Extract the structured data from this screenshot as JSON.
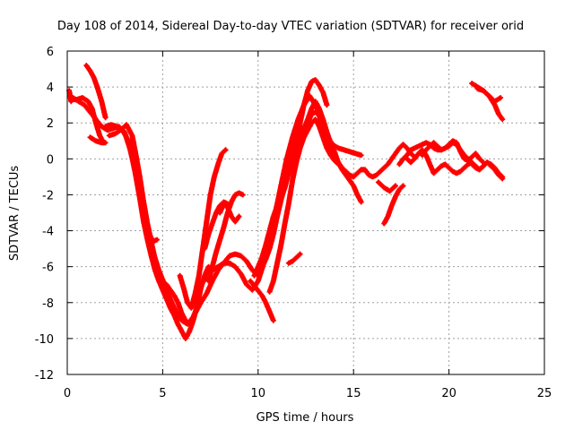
{
  "chart_data": {
    "type": "scatter",
    "title": "Day 108 of 2014, Sidereal Day-to-day VTEC variation (SDTVAR) for receiver orid",
    "xlabel": "GPS time / hours",
    "ylabel": "SDTVAR / TECUs",
    "xlim": [
      0,
      25
    ],
    "ylim": [
      -12,
      6
    ],
    "xticks": [
      0,
      5,
      10,
      15,
      20,
      25
    ],
    "yticks": [
      -12,
      -10,
      -8,
      -6,
      -4,
      -2,
      0,
      2,
      4,
      6
    ],
    "grid": true,
    "legend": "none",
    "marker_color": "#ff0000",
    "series": [
      {
        "name": "trace-1",
        "x": [
          0.1,
          0.2
        ],
        "y": [
          3.8,
          3.2
        ]
      },
      {
        "name": "trace-2",
        "x": [
          0.2,
          0.5,
          0.8,
          1.1,
          1.3,
          1.5,
          1.7,
          1.9
        ],
        "y": [
          3.3,
          3.3,
          3.4,
          3.2,
          2.8,
          2.0,
          1.3,
          0.9
        ]
      },
      {
        "name": "trace-3",
        "x": [
          0.3,
          0.6,
          0.9,
          1.2,
          1.5,
          1.8,
          2.1,
          2.4,
          2.7,
          3.0,
          3.3,
          3.6,
          3.9,
          4.2,
          4.5,
          4.8,
          5.1,
          5.4,
          5.7,
          6.0,
          6.3,
          6.6,
          6.9
        ],
        "y": [
          3.4,
          3.2,
          3.0,
          2.6,
          2.2,
          1.8,
          1.6,
          1.7,
          1.8,
          1.5,
          0.5,
          -0.9,
          -2.5,
          -4.0,
          -5.2,
          -6.2,
          -7.0,
          -7.8,
          -8.5,
          -9.0,
          -9.2,
          -8.8,
          -8.0
        ]
      },
      {
        "name": "trace-4",
        "x": [
          1.0,
          1.2,
          1.4,
          1.6,
          1.8,
          2.0
        ],
        "y": [
          5.2,
          4.9,
          4.5,
          3.9,
          3.2,
          2.3
        ]
      },
      {
        "name": "trace-5",
        "x": [
          1.2,
          1.5,
          1.8,
          2.0
        ],
        "y": [
          1.2,
          1.0,
          0.9,
          0.9
        ]
      },
      {
        "name": "trace-6",
        "x": [
          2.0,
          2.3,
          2.6,
          2.9,
          3.2,
          3.4,
          3.6,
          3.8,
          4.0,
          4.2,
          4.4,
          4.6,
          4.8,
          5.0,
          5.2,
          5.4,
          5.6,
          5.8,
          6.0,
          6.2,
          6.4,
          6.6,
          6.8,
          7.0,
          7.2,
          7.4
        ],
        "y": [
          1.8,
          1.9,
          1.8,
          1.6,
          1.0,
          0.1,
          -1.0,
          -2.2,
          -3.5,
          -4.5,
          -5.4,
          -6.2,
          -6.8,
          -7.3,
          -7.8,
          -8.3,
          -8.7,
          -9.2,
          -9.6,
          -10.0,
          -9.6,
          -9.0,
          -8.2,
          -7.2,
          -6.5,
          -6.0
        ]
      },
      {
        "name": "trace-7",
        "x": [
          2.2,
          2.5,
          2.8,
          3.1,
          3.4,
          3.6,
          3.8,
          4.0,
          4.2,
          4.4,
          4.6,
          4.8,
          5.0,
          5.2,
          5.4,
          5.6,
          5.8,
          6.0,
          6.2,
          6.4,
          6.6,
          6.8,
          7.0
        ],
        "y": [
          1.3,
          1.4,
          1.6,
          1.9,
          1.3,
          0.2,
          -1.0,
          -2.4,
          -3.6,
          -4.6,
          -5.6,
          -6.3,
          -6.8,
          -7.0,
          -7.3,
          -7.6,
          -8.0,
          -8.6,
          -9.0,
          -9.2,
          -8.8,
          -8.4,
          -8.0
        ]
      },
      {
        "name": "trace-8",
        "x": [
          3.5,
          3.7,
          3.9,
          4.1,
          4.3,
          4.5,
          4.7
        ],
        "y": [
          0.5,
          -1.0,
          -2.3,
          -3.4,
          -4.2,
          -4.6,
          -4.5
        ]
      },
      {
        "name": "trace-9",
        "x": [
          5.9,
          6.1,
          6.3,
          6.5,
          6.7,
          6.9,
          7.1,
          7.3,
          7.5,
          7.7,
          7.9,
          8.1,
          8.3
        ],
        "y": [
          -6.5,
          -7.2,
          -8.0,
          -8.3,
          -7.5,
          -6.5,
          -5.0,
          -3.5,
          -2.0,
          -1.0,
          -0.3,
          0.3,
          0.5
        ]
      },
      {
        "name": "trace-10",
        "x": [
          6.7,
          7.0,
          7.3,
          7.6,
          7.9,
          8.2,
          8.5,
          8.8,
          9.1,
          9.4,
          9.7,
          10.0,
          10.3,
          10.6,
          10.9,
          11.2,
          11.5,
          11.8,
          12.1,
          12.4,
          12.7,
          13.0,
          13.3,
          13.6,
          13.9,
          14.2,
          14.5,
          14.8,
          15.1,
          15.4
        ],
        "y": [
          -7.8,
          -7.0,
          -6.6,
          -6.2,
          -6.0,
          -5.8,
          -5.8,
          -6.0,
          -6.4,
          -7.0,
          -7.3,
          -6.8,
          -5.8,
          -4.6,
          -3.2,
          -1.5,
          0.0,
          1.2,
          2.2,
          3.0,
          3.5,
          3.0,
          2.2,
          1.3,
          0.8,
          0.6,
          0.5,
          0.4,
          0.3,
          0.2
        ]
      },
      {
        "name": "trace-11",
        "x": [
          7.0,
          7.3,
          7.6,
          7.9,
          8.2,
          8.5,
          8.8,
          9.1,
          9.4,
          9.7,
          10.0,
          10.3,
          10.6,
          10.9,
          11.2,
          11.5
        ],
        "y": [
          -8.0,
          -7.5,
          -6.8,
          -6.2,
          -5.8,
          -5.4,
          -5.3,
          -5.4,
          -5.7,
          -6.2,
          -6.5,
          -5.8,
          -4.5,
          -3.0,
          -1.5,
          0.0
        ]
      },
      {
        "name": "trace-12",
        "x": [
          7.4,
          7.6,
          7.8,
          8.0,
          8.2,
          8.4,
          8.6,
          8.8,
          9.0,
          9.2
        ],
        "y": [
          -6.8,
          -6.0,
          -5.2,
          -4.5,
          -3.8,
          -3.0,
          -2.4,
          -2.0,
          -1.9,
          -2.0
        ]
      },
      {
        "name": "trace-13",
        "x": [
          7.2,
          7.4,
          7.6,
          7.8,
          8.0,
          8.2,
          8.4
        ],
        "y": [
          -5.0,
          -4.2,
          -3.6,
          -3.0,
          -2.6,
          -2.4,
          -2.5
        ]
      },
      {
        "name": "trace-14",
        "x": [
          8.0,
          8.2,
          8.4,
          8.6,
          8.8,
          9.0
        ],
        "y": [
          -3.0,
          -2.5,
          -2.7,
          -3.2,
          -3.5,
          -3.2
        ]
      },
      {
        "name": "trace-15",
        "x": [
          9.8,
          10.0,
          10.2,
          10.4,
          10.6,
          10.8,
          11.0,
          11.2,
          11.4,
          11.6,
          11.8,
          12.0,
          12.2,
          12.4,
          12.6,
          12.8,
          13.0,
          13.2,
          13.4,
          13.6
        ],
        "y": [
          -6.5,
          -6.0,
          -5.5,
          -4.8,
          -4.0,
          -3.2,
          -2.6,
          -2.2,
          -1.6,
          -0.8,
          0.2,
          1.0,
          2.0,
          3.0,
          3.8,
          4.3,
          4.4,
          4.1,
          3.7,
          3.0
        ]
      },
      {
        "name": "trace-16",
        "x": [
          10.0,
          10.2,
          10.4,
          10.6,
          10.8,
          11.0,
          11.2,
          11.4,
          11.6,
          11.8,
          12.0,
          12.2,
          12.4,
          12.6,
          12.8,
          13.0,
          13.2,
          13.4,
          13.6,
          13.8,
          14.0,
          14.2,
          14.4,
          14.6,
          14.8,
          15.0,
          15.2,
          15.4
        ],
        "y": [
          -6.3,
          -6.0,
          -5.6,
          -5.0,
          -4.2,
          -3.2,
          -2.3,
          -1.5,
          -0.8,
          0.0,
          0.6,
          1.2,
          1.7,
          2.2,
          2.8,
          3.2,
          2.8,
          2.2,
          1.5,
          0.9,
          0.4,
          -0.2,
          -0.6,
          -0.9,
          -1.2,
          -1.5,
          -2.0,
          -2.4
        ]
      },
      {
        "name": "trace-17",
        "x": [
          10.6,
          10.8,
          11.0,
          11.2,
          11.4,
          11.6,
          11.8,
          12.0,
          12.2,
          12.4,
          12.6,
          12.8,
          13.0,
          13.2,
          13.4,
          13.6,
          13.8,
          14.0,
          14.2
        ],
        "y": [
          -7.4,
          -6.8,
          -5.8,
          -4.8,
          -3.6,
          -2.5,
          -1.2,
          -0.2,
          0.6,
          1.2,
          1.6,
          2.0,
          2.2,
          1.8,
          1.2,
          0.6,
          0.2,
          -0.1,
          -0.3
        ]
      },
      {
        "name": "trace-18",
        "x": [
          9.6,
          9.9,
          10.2,
          10.4,
          10.6,
          10.8
        ],
        "y": [
          -6.8,
          -7.2,
          -7.6,
          -8.0,
          -8.5,
          -9.0
        ]
      },
      {
        "name": "trace-19",
        "x": [
          11.6,
          11.8,
          12.0,
          12.2
        ],
        "y": [
          -5.8,
          -5.7,
          -5.5,
          -5.3
        ]
      },
      {
        "name": "trace-20",
        "x": [
          12.4,
          12.6,
          12.8,
          13.0,
          13.2,
          13.4,
          13.6,
          13.8,
          14.0,
          14.2,
          14.4,
          14.6,
          14.8,
          15.0,
          15.2,
          15.4,
          15.6,
          15.8,
          16.0,
          16.2,
          16.4,
          16.6,
          16.8,
          17.0,
          17.2,
          17.4,
          17.6,
          17.8,
          18.0,
          18.2
        ],
        "y": [
          1.5,
          2.0,
          2.5,
          2.6,
          2.4,
          1.8,
          1.2,
          0.6,
          0.2,
          -0.2,
          -0.5,
          -0.7,
          -0.9,
          -1.0,
          -0.8,
          -0.6,
          -0.6,
          -0.9,
          -1.0,
          -0.9,
          -0.7,
          -0.5,
          -0.3,
          0.0,
          0.3,
          0.6,
          0.8,
          0.6,
          0.3,
          0.1
        ]
      },
      {
        "name": "trace-21",
        "x": [
          16.3,
          16.6,
          16.9,
          17.2
        ],
        "y": [
          -1.3,
          -1.6,
          -1.8,
          -1.5
        ]
      },
      {
        "name": "trace-22",
        "x": [
          16.6,
          16.8,
          17.0,
          17.2,
          17.4,
          17.6
        ],
        "y": [
          -3.6,
          -3.2,
          -2.6,
          -2.1,
          -1.7,
          -1.5
        ]
      },
      {
        "name": "trace-23",
        "x": [
          17.4,
          17.6,
          17.8,
          18.0,
          18.2,
          18.4,
          18.6,
          18.8,
          19.0,
          19.2,
          19.4,
          19.6,
          19.8,
          20.0,
          20.2,
          20.4,
          20.6,
          20.8,
          21.0,
          21.2,
          21.4,
          21.6,
          21.8,
          22.0,
          22.2,
          22.4,
          22.6,
          22.8
        ],
        "y": [
          -0.3,
          0.0,
          0.2,
          0.5,
          0.6,
          0.7,
          0.8,
          0.9,
          0.8,
          0.6,
          0.5,
          0.5,
          0.6,
          0.7,
          0.9,
          0.8,
          0.5,
          0.2,
          0.0,
          -0.3,
          -0.5,
          -0.6,
          -0.4,
          -0.2,
          -0.3,
          -0.5,
          -0.8,
          -1.0
        ]
      },
      {
        "name": "trace-24",
        "x": [
          17.8,
          18.0,
          18.2,
          18.4,
          18.6,
          18.8,
          19.0,
          19.2,
          19.4,
          19.6,
          19.8,
          20.0,
          20.2,
          20.4,
          20.6,
          20.8,
          21.0,
          21.2,
          21.4,
          21.6,
          21.8,
          22.0,
          22.2,
          22.4,
          22.6,
          22.8
        ],
        "y": [
          0.0,
          -0.2,
          0.0,
          0.3,
          0.5,
          0.2,
          -0.3,
          -0.8,
          -0.6,
          -0.4,
          -0.3,
          -0.5,
          -0.7,
          -0.8,
          -0.7,
          -0.5,
          -0.3,
          -0.2,
          -0.4,
          -0.6,
          -0.4,
          -0.2,
          -0.4,
          -0.6,
          -0.9,
          -1.1
        ]
      },
      {
        "name": "trace-25",
        "x": [
          18.6,
          18.8,
          19.0,
          19.2,
          19.4,
          19.6,
          19.8,
          20.0,
          20.2,
          20.4,
          20.6,
          20.8,
          21.0,
          21.2,
          21.4,
          21.6,
          21.8
        ],
        "y": [
          0.2,
          0.5,
          0.7,
          0.9,
          0.7,
          0.5,
          0.6,
          0.8,
          1.0,
          0.9,
          0.4,
          0.0,
          -0.1,
          0.1,
          0.3,
          0.0,
          -0.2
        ]
      },
      {
        "name": "trace-26",
        "x": [
          21.2,
          21.5,
          21.8,
          22.1,
          22.4,
          22.7
        ],
        "y": [
          4.2,
          4.0,
          3.8,
          3.5,
          3.2,
          3.4
        ]
      },
      {
        "name": "trace-27",
        "x": [
          21.5,
          21.8,
          22.1,
          22.4,
          22.6,
          22.8
        ],
        "y": [
          3.9,
          3.8,
          3.5,
          3.0,
          2.5,
          2.2
        ]
      }
    ]
  }
}
